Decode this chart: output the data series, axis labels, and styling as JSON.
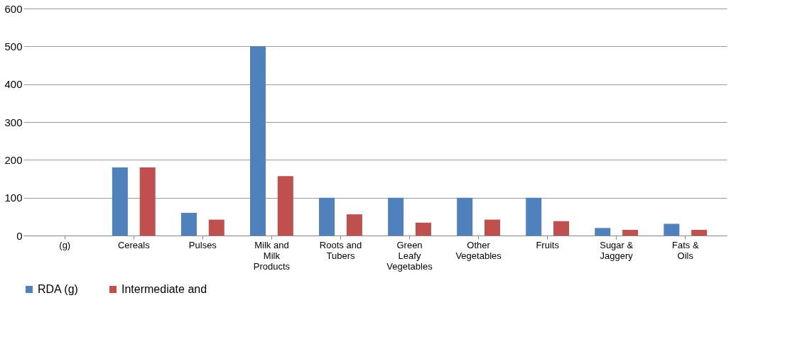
{
  "chart_data": {
    "type": "bar",
    "categories": [
      "(g)",
      "Cereals",
      "Pulses",
      "Milk and Milk Products",
      "Roots and Tubers",
      "Green Leafy Vegetables",
      "Other Vegetables",
      "Fruits",
      "Sugar & Jaggery",
      "Fats & Oils"
    ],
    "series": [
      {
        "name": "RDA (g)",
        "color": "#4f81bd",
        "values": [
          null,
          180,
          60,
          500,
          100,
          100,
          100,
          100,
          20,
          31
        ]
      },
      {
        "name": "Intermediate and",
        "color": "#c0504d",
        "values": [
          null,
          180,
          42,
          157,
          56,
          34,
          42,
          38,
          15,
          15
        ]
      }
    ],
    "ylim": [
      0,
      600
    ],
    "yticks": [
      0,
      100,
      200,
      300,
      400,
      500,
      600
    ],
    "grid": "y",
    "legend": "bottom"
  }
}
